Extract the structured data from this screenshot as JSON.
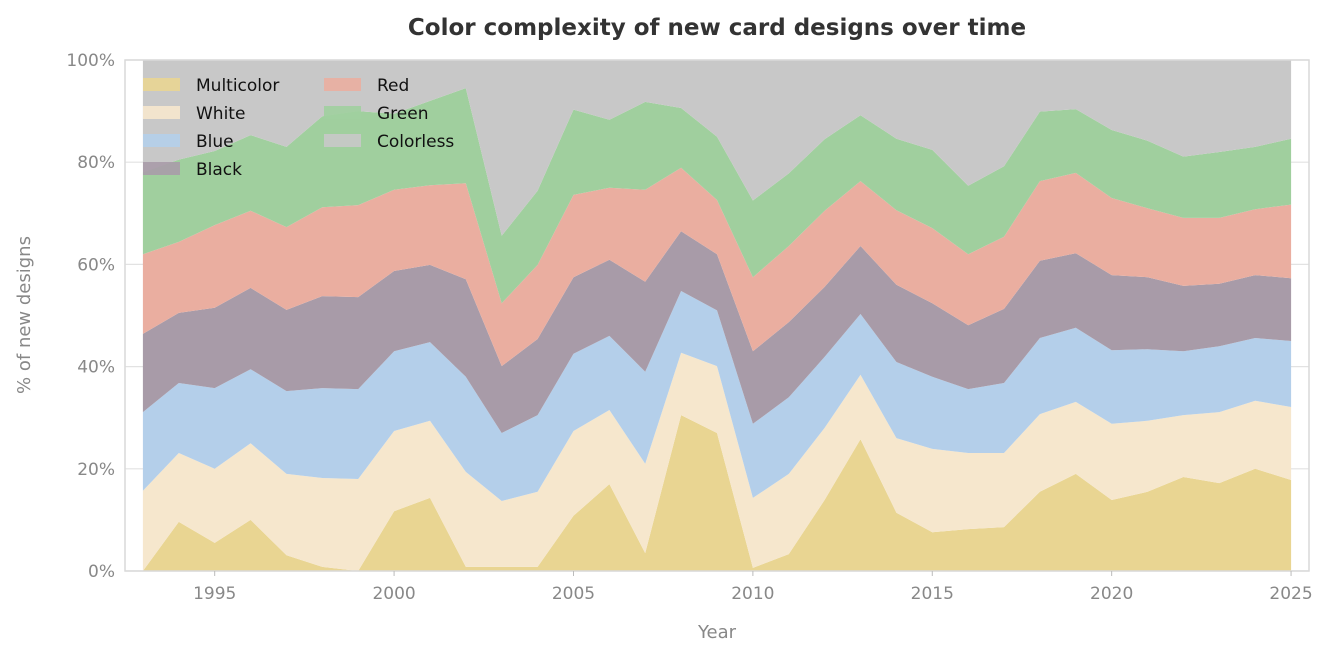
{
  "chart_data": {
    "type": "area",
    "stacked": true,
    "title": "Color complexity of new card designs over time",
    "xlabel": "Year",
    "ylabel": "% of new designs",
    "xlim": [
      1992.5,
      2025.5
    ],
    "ylim": [
      0,
      100
    ],
    "x_ticks": [
      "1995",
      "2000",
      "2005",
      "2010",
      "2015",
      "2020",
      "2025"
    ],
    "y_ticks": [
      "0%",
      "20%",
      "40%",
      "60%",
      "80%",
      "100%"
    ],
    "grid": "horizontal",
    "legend_position": "top-left",
    "x": [
      1993,
      1994,
      1995,
      1996,
      1997,
      1998,
      1999,
      2000,
      2001,
      2002,
      2003,
      2004,
      2005,
      2006,
      2007,
      2008,
      2009,
      2010,
      2011,
      2012,
      2013,
      2014,
      2015,
      2016,
      2017,
      2018,
      2019,
      2020,
      2021,
      2022,
      2023,
      2024,
      2025
    ],
    "series": [
      {
        "name": "Multicolor",
        "color": "#e9d592",
        "values": [
          0,
          9.6,
          5.5,
          10,
          3.1,
          0.8,
          0,
          11.7,
          14.3,
          0.8,
          0.8,
          0.8,
          10.8,
          17,
          3.5,
          30.5,
          27,
          0.6,
          3.3,
          13.9,
          25.8,
          11.4,
          7.6,
          8.2,
          8.6,
          15.5,
          19,
          13.9,
          15.5,
          18.4,
          17.2,
          20,
          17.8
        ]
      },
      {
        "name": "White",
        "color": "#f6e7cd",
        "values": [
          15.7,
          13.5,
          14.5,
          15,
          15.9,
          17.4,
          18,
          15.7,
          15.1,
          18.6,
          12.9,
          14.7,
          16.6,
          14.5,
          17.5,
          12.2,
          13.1,
          13.7,
          15.7,
          14.1,
          12.6,
          14.6,
          16.3,
          14.9,
          14.5,
          15.2,
          14.1,
          14.9,
          13.9,
          12.1,
          13.9,
          13.3,
          14.3
        ]
      },
      {
        "name": "Blue",
        "color": "#b4cfea",
        "values": [
          15.4,
          13.7,
          15.8,
          14.5,
          16.2,
          17.6,
          17.6,
          15.6,
          15.4,
          18.6,
          13.3,
          15,
          15.1,
          14.5,
          18,
          12.1,
          10.9,
          14.5,
          15,
          13.9,
          11.9,
          14.9,
          14.1,
          12.5,
          13.7,
          14.9,
          14.5,
          14.4,
          14,
          12.5,
          12.9,
          12.3,
          12.9
        ]
      },
      {
        "name": "Black",
        "color": "#a89ba8",
        "values": [
          15.3,
          13.7,
          15.7,
          15.9,
          15.9,
          18,
          18,
          15.7,
          15.1,
          19.1,
          13.1,
          14.9,
          15,
          14.9,
          17.6,
          11.7,
          11,
          14.2,
          14.7,
          13.7,
          13.3,
          15.1,
          14.4,
          12.5,
          14.5,
          15.1,
          14.6,
          14.7,
          14.1,
          12.8,
          12.2,
          12.3,
          12.3
        ]
      },
      {
        "name": "Red",
        "color": "#eaaea0",
        "values": [
          15.6,
          13.9,
          16.2,
          15.1,
          16.2,
          17.4,
          18,
          15.9,
          15.6,
          18.8,
          12.3,
          14.5,
          16.1,
          14.1,
          18,
          12.4,
          10.6,
          14.5,
          14.9,
          14.9,
          12.7,
          14.6,
          14.7,
          13.9,
          14.1,
          15.6,
          15.7,
          15.1,
          13.5,
          13.3,
          12.9,
          12.9,
          14.4
        ]
      },
      {
        "name": "Green",
        "color": "#a0cf9e",
        "values": [
          16,
          16.1,
          14.5,
          14.8,
          15.7,
          17.8,
          18.4,
          14.9,
          16.5,
          18.6,
          13.2,
          14.5,
          16.7,
          13.3,
          17.2,
          11.7,
          12.4,
          15,
          14.2,
          14,
          12.9,
          14,
          15.3,
          13.4,
          13.8,
          13.6,
          12.5,
          13.3,
          13.2,
          12,
          12.9,
          12.2,
          12.9
        ]
      },
      {
        "name": "Colorless",
        "color": "#c8c8c8",
        "values": [
          22,
          19.5,
          17.8,
          14.7,
          17,
          11,
          10,
          10.5,
          8,
          5.5,
          34.4,
          25.6,
          9.7,
          11.7,
          8.2,
          9.4,
          15,
          27.5,
          22.2,
          15.5,
          10.8,
          15.4,
          17.6,
          24.6,
          20.8,
          10.1,
          9.6,
          13.7,
          15.8,
          18.9,
          18,
          17,
          15.4
        ]
      }
    ]
  }
}
